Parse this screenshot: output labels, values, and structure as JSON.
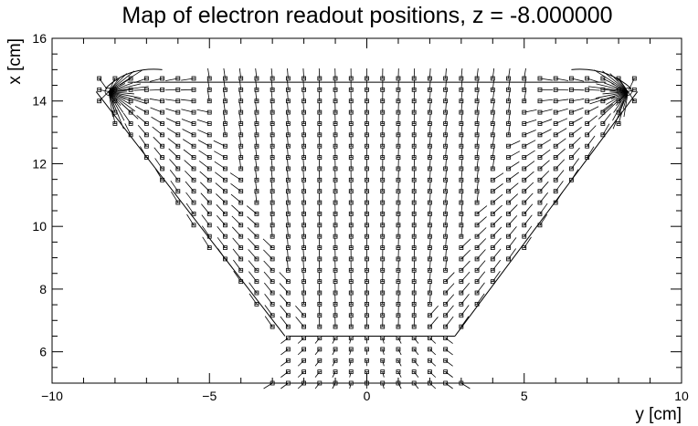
{
  "chart_data": {
    "type": "scatter",
    "title": "Map of electron readout positions, z = -8.000000",
    "xlabel": "y [cm]",
    "ylabel": "x [cm]",
    "xlim": [
      -10,
      10
    ],
    "ylim": [
      5,
      16
    ],
    "x_ticks": [
      "−10",
      "−5",
      "0",
      "5",
      "10"
    ],
    "y_ticks": [
      "6",
      "8",
      "10",
      "12",
      "14",
      "16"
    ],
    "grid": false,
    "legend": "none",
    "readout_points_left": [
      -8.2,
      14.3
    ],
    "readout_points_right": [
      8.3,
      14.3
    ],
    "detector_outline": {
      "top_bar": {
        "y_from": -7.6,
        "y_to": 7.6,
        "x": 14.6
      },
      "lower_edge": {
        "y_from": -2.5,
        "y_to": 2.8,
        "x": 6.5
      },
      "side_left": [
        [
          -8.6,
          14.3
        ],
        [
          -2.6,
          6.5
        ]
      ],
      "side_right": [
        [
          8.6,
          14.3
        ],
        [
          2.8,
          6.5
        ]
      ]
    },
    "grid_spacing_cm": 0.5,
    "grid_x_range": [
      5.0,
      15.0
    ],
    "grid_y_range": [
      -8.5,
      8.5
    ]
  }
}
